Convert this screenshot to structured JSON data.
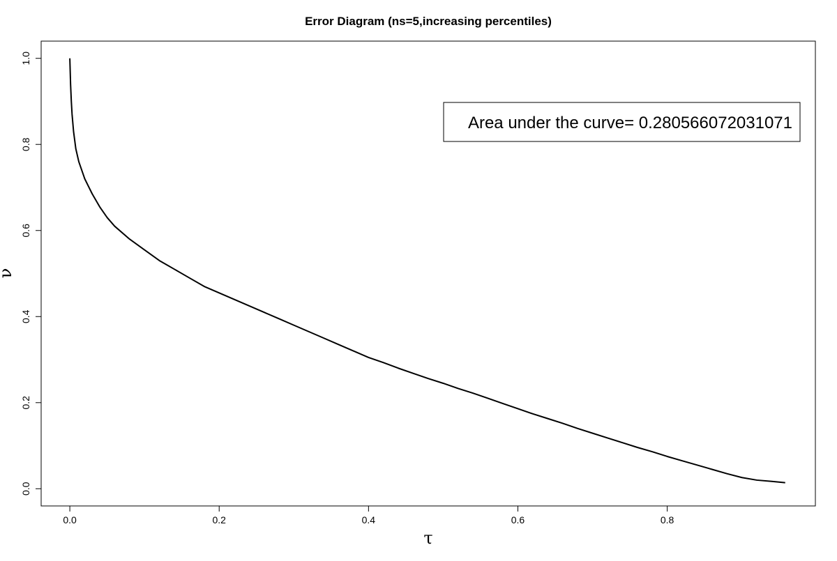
{
  "chart_data": {
    "type": "line",
    "title": "Error Diagram (ns=5,increasing percentiles)",
    "xlabel": "τ",
    "ylabel": "ν",
    "xlim": [
      0.0,
      0.96
    ],
    "ylim": [
      0.0,
      1.0
    ],
    "x_ticks": [
      "0.0",
      "0.2",
      "0.4",
      "0.6",
      "0.8"
    ],
    "y_ticks": [
      "0.0",
      "0.2",
      "0.4",
      "0.6",
      "0.8",
      "1.0"
    ],
    "grid": false,
    "legend_position": "top-right",
    "annotation": "Area under the curve= 0.280566072031071",
    "series": [
      {
        "color": "#000000",
        "x": [
          0.0,
          0.001,
          0.002,
          0.003,
          0.005,
          0.008,
          0.012,
          0.02,
          0.03,
          0.04,
          0.05,
          0.06,
          0.08,
          0.1,
          0.12,
          0.14,
          0.16,
          0.18,
          0.2,
          0.22,
          0.24,
          0.26,
          0.28,
          0.3,
          0.32,
          0.34,
          0.36,
          0.38,
          0.4,
          0.42,
          0.44,
          0.46,
          0.48,
          0.5,
          0.52,
          0.54,
          0.56,
          0.58,
          0.6,
          0.62,
          0.64,
          0.66,
          0.68,
          0.7,
          0.72,
          0.74,
          0.76,
          0.78,
          0.8,
          0.82,
          0.84,
          0.86,
          0.88,
          0.9,
          0.92,
          0.94,
          0.958
        ],
        "y": [
          1.0,
          0.94,
          0.9,
          0.87,
          0.83,
          0.79,
          0.76,
          0.72,
          0.685,
          0.655,
          0.63,
          0.61,
          0.58,
          0.555,
          0.53,
          0.51,
          0.49,
          0.47,
          0.455,
          0.44,
          0.425,
          0.41,
          0.395,
          0.38,
          0.365,
          0.35,
          0.335,
          0.32,
          0.305,
          0.293,
          0.28,
          0.268,
          0.256,
          0.245,
          0.233,
          0.222,
          0.21,
          0.198,
          0.186,
          0.174,
          0.163,
          0.152,
          0.14,
          0.129,
          0.118,
          0.107,
          0.096,
          0.086,
          0.075,
          0.065,
          0.055,
          0.045,
          0.035,
          0.026,
          0.02,
          0.017,
          0.014
        ]
      }
    ]
  }
}
